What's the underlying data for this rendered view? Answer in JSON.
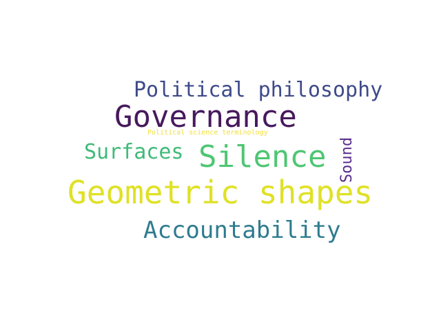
{
  "word_cloud": {
    "background": "#ffffff",
    "words": [
      {
        "key": "political_philosophy",
        "text": "Political philosophy",
        "color": "#3e4a89"
      },
      {
        "key": "governance",
        "text": "Governance",
        "color": "#46195d"
      },
      {
        "key": "political_science_terminology",
        "text": "Political science terminology",
        "color": "#f1df3a"
      },
      {
        "key": "surfaces",
        "text": "Surfaces",
        "color": "#3fba78"
      },
      {
        "key": "silence",
        "text": "Silence",
        "color": "#4ec673"
      },
      {
        "key": "sound",
        "text": "Sound",
        "color": "#5a2e8c",
        "orientation": "vertical"
      },
      {
        "key": "geometric_shapes",
        "text": "Geometric shapes",
        "color": "#dfe125"
      },
      {
        "key": "accountability",
        "text": "Accountability",
        "color": "#2e7b8f"
      }
    ]
  }
}
